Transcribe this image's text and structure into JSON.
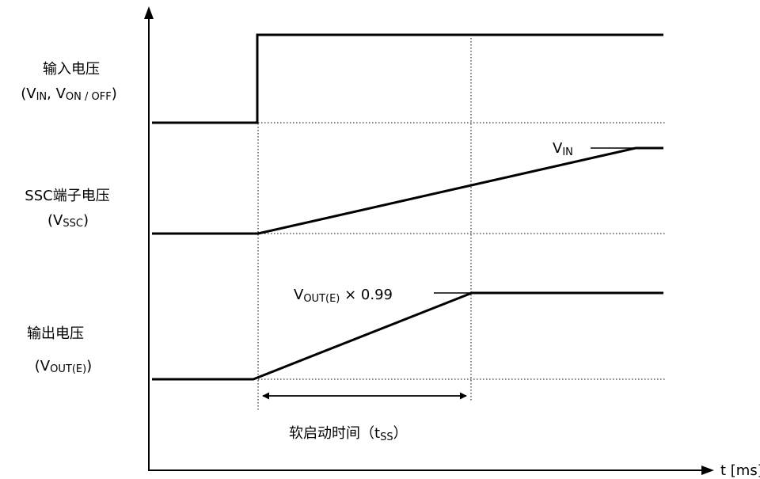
{
  "signals": {
    "input": {
      "name": "输入电压",
      "sym_open": "(V",
      "sym_sub1": "IN",
      "sym_sep": ", V",
      "sym_sub2": "ON / OFF",
      "sym_close": ")"
    },
    "ssc": {
      "name": "SSC端子电压",
      "sym_open": "(V",
      "sym_sub": "SSC",
      "sym_close": ")"
    },
    "output": {
      "name": "输出电压",
      "sym_open": "(V",
      "sym_sub": "OUT(E)",
      "sym_close": ")"
    }
  },
  "annotations": {
    "ssc_final": {
      "main": "V",
      "sub": "IN"
    },
    "out_final": {
      "main": "V",
      "sub": "OUT(E)",
      "suffix": " × 0.99"
    },
    "soft_start": {
      "main": "软启动时间（t",
      "sub": "SS",
      "suffix": "）"
    }
  },
  "axis": {
    "x_label": "t [ms]"
  }
}
